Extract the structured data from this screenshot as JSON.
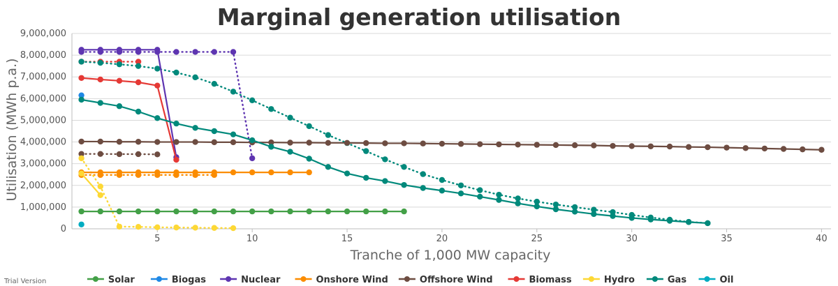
{
  "chart_data": {
    "type": "line",
    "title": "Marginal generation utilisation",
    "xlabel": "Tranche of 1,000 MW capacity",
    "ylabel": "Utilisation (MWh p.a.)",
    "xlim": [
      0.5,
      40.5
    ],
    "ylim": [
      0,
      9000000
    ],
    "xticks": [
      5,
      10,
      15,
      20,
      25,
      30,
      35,
      40
    ],
    "yticks": [
      0,
      1000000,
      2000000,
      3000000,
      4000000,
      5000000,
      6000000,
      7000000,
      8000000,
      9000000
    ],
    "ytick_labels": [
      "0",
      "1,000,000",
      "2,000,000",
      "3,000,000",
      "4,000,000",
      "5,000,000",
      "6,000,000",
      "7,000,000",
      "8,000,000",
      "9,000,000"
    ],
    "grid": "horizontal",
    "legend_position": "bottom",
    "credit": "Trial Version",
    "series": [
      {
        "name": "Solar",
        "color": "#43a047",
        "style": "solid",
        "x": [
          1,
          2,
          3,
          4,
          5,
          6,
          7,
          8,
          9,
          10,
          11,
          12,
          13,
          14,
          15,
          16,
          17,
          18
        ],
        "values": [
          800000,
          800000,
          800000,
          800000,
          800000,
          800000,
          800000,
          800000,
          800000,
          800000,
          800000,
          800000,
          800000,
          800000,
          800000,
          800000,
          800000,
          800000
        ]
      },
      {
        "name": "Solar (dotted)",
        "legend": false,
        "color": "#43a047",
        "style": "dotted",
        "x": [],
        "values": []
      },
      {
        "name": "Biogas",
        "color": "#1e88e5",
        "style": "solid",
        "x": [
          1
        ],
        "values": [
          6150000
        ]
      },
      {
        "name": "Nuclear",
        "color": "#5e35b1",
        "style": "solid",
        "x": [
          1,
          2,
          3,
          4,
          5,
          6
        ],
        "values": [
          8250000,
          8250000,
          8250000,
          8250000,
          8250000,
          3300000
        ]
      },
      {
        "name": "Nuclear (dotted)",
        "legend": false,
        "color": "#5e35b1",
        "style": "dotted",
        "x": [
          1,
          2,
          3,
          4,
          5,
          6,
          7,
          8,
          9,
          10
        ],
        "values": [
          8150000,
          8150000,
          8150000,
          8150000,
          8150000,
          8150000,
          8150000,
          8150000,
          8150000,
          3250000
        ]
      },
      {
        "name": "Onshore Wind",
        "color": "#fb8c00",
        "style": "solid",
        "x": [
          1,
          2,
          3,
          4,
          5,
          6,
          7,
          8,
          9,
          10,
          11,
          12,
          13
        ],
        "values": [
          2600000,
          2600000,
          2600000,
          2600000,
          2600000,
          2600000,
          2600000,
          2600000,
          2600000,
          2600000,
          2600000,
          2600000,
          2600000
        ]
      },
      {
        "name": "Onshore Wind (dotted)",
        "legend": false,
        "color": "#fb8c00",
        "style": "dotted",
        "x": [
          1,
          2,
          3,
          4,
          5,
          6,
          7,
          8
        ],
        "values": [
          2480000,
          2480000,
          2480000,
          2480000,
          2480000,
          2480000,
          2480000,
          2480000
        ]
      },
      {
        "name": "Offshore Wind",
        "color": "#6d4c41",
        "style": "solid",
        "x": [
          1,
          2,
          3,
          4,
          5,
          6,
          7,
          8,
          9,
          10,
          11,
          12,
          13,
          14,
          15,
          16,
          17,
          18,
          19,
          20,
          21,
          22,
          23,
          24,
          25,
          26,
          27,
          28,
          29,
          30,
          31,
          32,
          33,
          34,
          35,
          36,
          37,
          38,
          39,
          40
        ],
        "values": [
          4020000,
          4020000,
          4010000,
          4010000,
          4000000,
          4000000,
          4000000,
          3990000,
          3990000,
          3980000,
          3980000,
          3970000,
          3970000,
          3960000,
          3960000,
          3950000,
          3940000,
          3940000,
          3930000,
          3920000,
          3910000,
          3900000,
          3890000,
          3880000,
          3870000,
          3860000,
          3850000,
          3840000,
          3820000,
          3810000,
          3800000,
          3790000,
          3770000,
          3760000,
          3740000,
          3720000,
          3700000,
          3680000,
          3660000,
          3640000
        ]
      },
      {
        "name": "Offshore Wind (dotted)",
        "legend": false,
        "color": "#6d4c41",
        "style": "dotted",
        "x": [
          1,
          2,
          3,
          4,
          5
        ],
        "values": [
          3450000,
          3450000,
          3440000,
          3440000,
          3430000
        ]
      },
      {
        "name": "Biomass",
        "color": "#e53935",
        "style": "solid",
        "x": [
          1,
          2,
          3,
          4,
          5,
          6
        ],
        "values": [
          6950000,
          6880000,
          6820000,
          6750000,
          6600000,
          3180000
        ]
      },
      {
        "name": "Biomass (dotted)",
        "legend": false,
        "color": "#e53935",
        "style": "dotted",
        "x": [
          1,
          2,
          3,
          4
        ],
        "values": [
          7700000,
          7700000,
          7700000,
          7700000
        ]
      },
      {
        "name": "Hydro",
        "color": "#fdd835",
        "style": "solid",
        "x": [
          1,
          2
        ],
        "values": [
          2550000,
          1550000
        ]
      },
      {
        "name": "Hydro (dotted)",
        "legend": false,
        "color": "#fdd835",
        "style": "dotted",
        "x": [
          1,
          2,
          3,
          4,
          5,
          6,
          7,
          8,
          9
        ],
        "values": [
          3250000,
          1950000,
          100000,
          90000,
          70000,
          60000,
          50000,
          40000,
          30000
        ]
      },
      {
        "name": "Gas",
        "color": "#00897b",
        "style": "solid",
        "x": [
          1,
          2,
          3,
          4,
          5,
          6,
          7,
          8,
          9,
          10,
          11,
          12,
          13,
          14,
          15,
          16,
          17,
          18,
          19,
          20,
          21,
          22,
          23,
          24,
          25,
          26,
          27,
          28,
          29,
          30,
          31,
          32,
          33,
          34
        ],
        "values": [
          5950000,
          5800000,
          5650000,
          5400000,
          5100000,
          4850000,
          4650000,
          4500000,
          4350000,
          4080000,
          3780000,
          3550000,
          3230000,
          2850000,
          2550000,
          2350000,
          2200000,
          2020000,
          1880000,
          1760000,
          1630000,
          1480000,
          1330000,
          1170000,
          1030000,
          900000,
          790000,
          680000,
          590000,
          500000,
          430000,
          370000,
          310000,
          260000
        ]
      },
      {
        "name": "Gas (dotted)",
        "legend": false,
        "color": "#00897b",
        "style": "dotted",
        "x": [
          1,
          2,
          3,
          4,
          5,
          6,
          7,
          8,
          9,
          10,
          11,
          12,
          13,
          14,
          15,
          16,
          17,
          18,
          19,
          20,
          21,
          22,
          23,
          24,
          25,
          26,
          27,
          28,
          29,
          30,
          31,
          32,
          33,
          34
        ],
        "values": [
          7700000,
          7650000,
          7580000,
          7500000,
          7380000,
          7200000,
          6980000,
          6680000,
          6320000,
          5920000,
          5520000,
          5120000,
          4730000,
          4320000,
          3950000,
          3580000,
          3200000,
          2850000,
          2520000,
          2250000,
          2000000,
          1780000,
          1570000,
          1400000,
          1250000,
          1120000,
          1000000,
          880000,
          770000,
          640000,
          520000,
          420000,
          320000,
          260000
        ]
      },
      {
        "name": "Oil",
        "color": "#00acc1",
        "style": "solid",
        "x": [
          1
        ],
        "values": [
          200000
        ]
      }
    ]
  }
}
